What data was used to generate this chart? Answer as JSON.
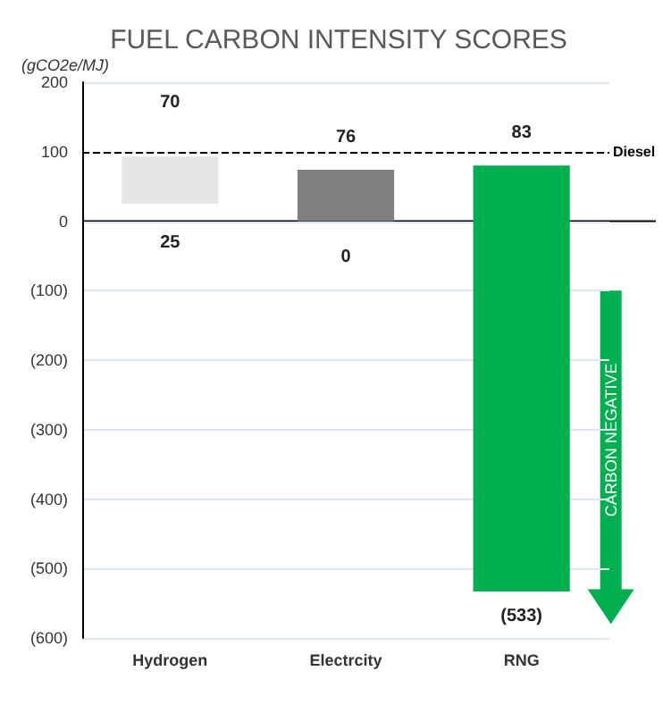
{
  "chart_data": {
    "type": "bar",
    "title": "FUEL CARBON INTENSITY SCORES",
    "ylabel": "(gCO2e/MJ)",
    "categories": [
      "Hydrogen",
      "Electrcity",
      "RNG"
    ],
    "values": [
      68,
      74,
      613
    ],
    "base": [
      25,
      0,
      -533
    ],
    "colors": [
      "#e6e6e6",
      "#7f7f7f",
      "#00b050"
    ],
    "ylim": [
      -600,
      200
    ],
    "yticks": [
      200,
      100,
      0,
      {
        "value": -100,
        "label": "(100)"
      },
      {
        "value": -200,
        "label": "(200)"
      },
      {
        "value": -300,
        "label": "(300)"
      },
      {
        "value": -400,
        "label": "(400)"
      },
      {
        "value": -500,
        "label": "(500)"
      },
      {
        "value": -600,
        "label": "(600)"
      }
    ],
    "grid": "y",
    "ref_lines": [
      {
        "axis": "y",
        "value": 100,
        "label": "Diesel",
        "color": "#000000",
        "line_style": "dashed"
      }
    ],
    "annotations": [
      "70",
      "76",
      "83",
      "25",
      "0",
      "(533)",
      "CARBON NEGATIVE"
    ]
  }
}
